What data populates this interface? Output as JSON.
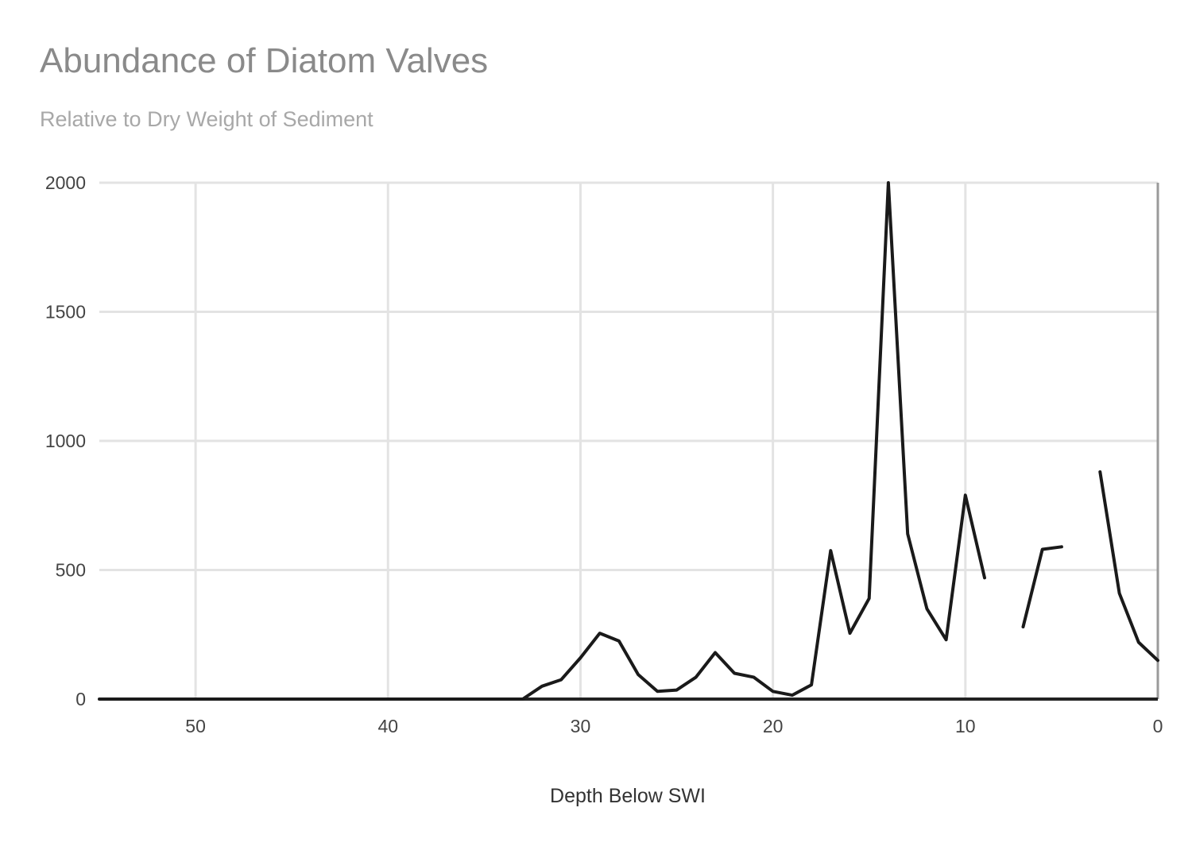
{
  "chart_data": {
    "type": "line",
    "title": "Abundance of Diatom Valves",
    "subtitle": "Relative to Dry Weight of Sediment",
    "xlabel": "Depth Below SWI",
    "ylabel": "",
    "xlim": [
      55,
      0
    ],
    "ylim": [
      0,
      2000
    ],
    "x_reversed": true,
    "x_ticks": [
      50,
      40,
      30,
      20,
      10,
      0
    ],
    "y_ticks": [
      0,
      500,
      1000,
      1500,
      2000
    ],
    "grid": true,
    "legend": "none",
    "series": [
      {
        "color": "#1a1a1a",
        "points": [
          [
            55,
            0
          ],
          [
            50,
            0
          ],
          [
            45,
            0
          ],
          [
            40,
            0
          ],
          [
            35,
            0
          ],
          [
            33,
            0
          ],
          [
            32,
            50
          ],
          [
            31,
            75
          ],
          [
            30,
            160
          ],
          [
            29,
            255
          ],
          [
            28,
            225
          ],
          [
            27,
            95
          ],
          [
            26,
            30
          ],
          [
            25,
            35
          ],
          [
            24,
            85
          ],
          [
            23,
            180
          ],
          [
            22,
            100
          ],
          [
            21,
            85
          ],
          [
            20,
            30
          ],
          [
            19,
            15
          ],
          [
            18,
            55
          ],
          [
            17,
            575
          ],
          [
            16,
            255
          ],
          [
            15,
            390
          ],
          [
            14,
            2000
          ],
          [
            13,
            640
          ],
          [
            12,
            350
          ],
          [
            11,
            230
          ],
          [
            10,
            790
          ],
          [
            9,
            470
          ],
          null,
          [
            7,
            280
          ],
          [
            6,
            580
          ],
          [
            5,
            590
          ],
          null,
          [
            3,
            880
          ],
          [
            2,
            410
          ],
          [
            1,
            220
          ],
          [
            0,
            150
          ]
        ]
      }
    ]
  }
}
